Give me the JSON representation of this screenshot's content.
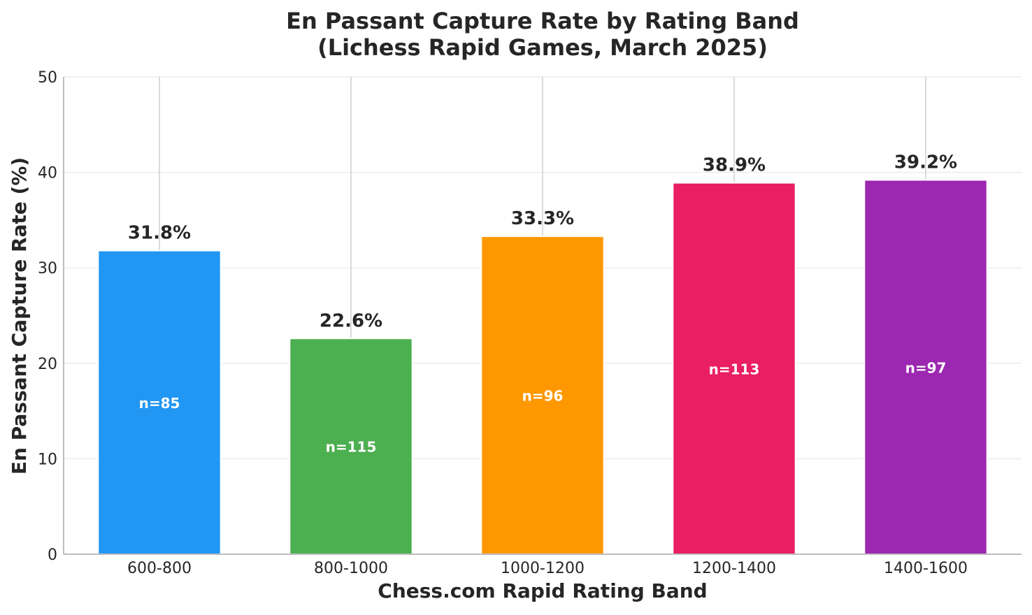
{
  "chart_data": {
    "type": "bar",
    "title_lines": [
      "En Passant Capture Rate by Rating Band",
      "(Lichess Rapid Games, March 2025)"
    ],
    "xlabel": "Chess.com Rapid Rating Band",
    "ylabel": "En Passant Capture Rate (%)",
    "ylim": [
      0,
      50
    ],
    "yticks": [
      0,
      10,
      20,
      30,
      40,
      50
    ],
    "categories": [
      "600-800",
      "800-1000",
      "1000-1200",
      "1200-1400",
      "1400-1600"
    ],
    "values": [
      31.8,
      22.6,
      33.3,
      38.9,
      39.2
    ],
    "value_labels": [
      "31.8%",
      "22.6%",
      "33.3%",
      "38.9%",
      "39.2%"
    ],
    "sample_labels": [
      "n=85",
      "n=115",
      "n=96",
      "n=113",
      "n=97"
    ],
    "colors": [
      "#2196f3",
      "#4caf50",
      "#ff9800",
      "#e91e63",
      "#9c27b0"
    ],
    "grid": true,
    "legend": "none"
  }
}
